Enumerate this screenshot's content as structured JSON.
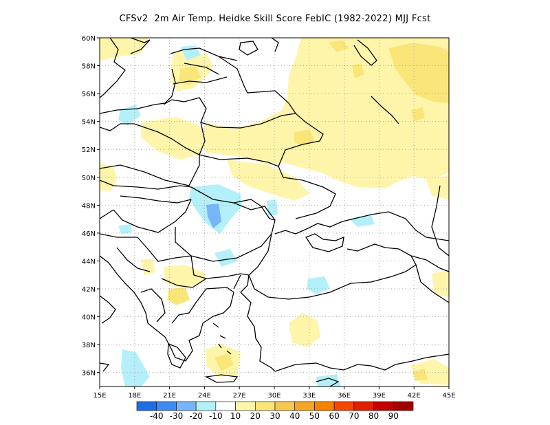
{
  "title": "CFSv2  2m Air Temp. Heidke Skill Score FebIC (1982-2022) MJJ Fcst",
  "map": {
    "lon_range": [
      15,
      45
    ],
    "lat_range": [
      35,
      60
    ],
    "lat_ticks": [
      {
        "value": 60,
        "label": "60N"
      },
      {
        "value": 58,
        "label": "58N"
      },
      {
        "value": 56,
        "label": "56N"
      },
      {
        "value": 54,
        "label": "54N"
      },
      {
        "value": 52,
        "label": "52N"
      },
      {
        "value": 50,
        "label": "50N"
      },
      {
        "value": 48,
        "label": "48N"
      },
      {
        "value": 46,
        "label": "46N"
      },
      {
        "value": 44,
        "label": "44N"
      },
      {
        "value": 42,
        "label": "42N"
      },
      {
        "value": 40,
        "label": "40N"
      },
      {
        "value": 38,
        "label": "38N"
      },
      {
        "value": 36,
        "label": "36N"
      }
    ],
    "lon_ticks": [
      {
        "value": 15,
        "label": "15E"
      },
      {
        "value": 18,
        "label": "18E"
      },
      {
        "value": 21,
        "label": "21E"
      },
      {
        "value": 24,
        "label": "24E"
      },
      {
        "value": 27,
        "label": "27E"
      },
      {
        "value": 30,
        "label": "30E"
      },
      {
        "value": 33,
        "label": "33E"
      },
      {
        "value": 36,
        "label": "36E"
      },
      {
        "value": 39,
        "label": "39E"
      },
      {
        "value": 42,
        "label": "42E"
      },
      {
        "value": 45,
        "label": "45E"
      }
    ],
    "grid": "dotted"
  },
  "colorbar": {
    "colors": [
      "#1e6ee6",
      "#3c8cf0",
      "#78b4f8",
      "#b4f0fa",
      "#ffffff",
      "#fff5aa",
      "#fae678",
      "#f5c850",
      "#f5a528",
      "#f58200",
      "#f54600",
      "#e11e00",
      "#c30000",
      "#a00000"
    ],
    "labels": [
      "-40",
      "-30",
      "-20",
      "-10",
      "10",
      "20",
      "30",
      "40",
      "50",
      "60",
      "70",
      "80",
      "90"
    ]
  }
}
